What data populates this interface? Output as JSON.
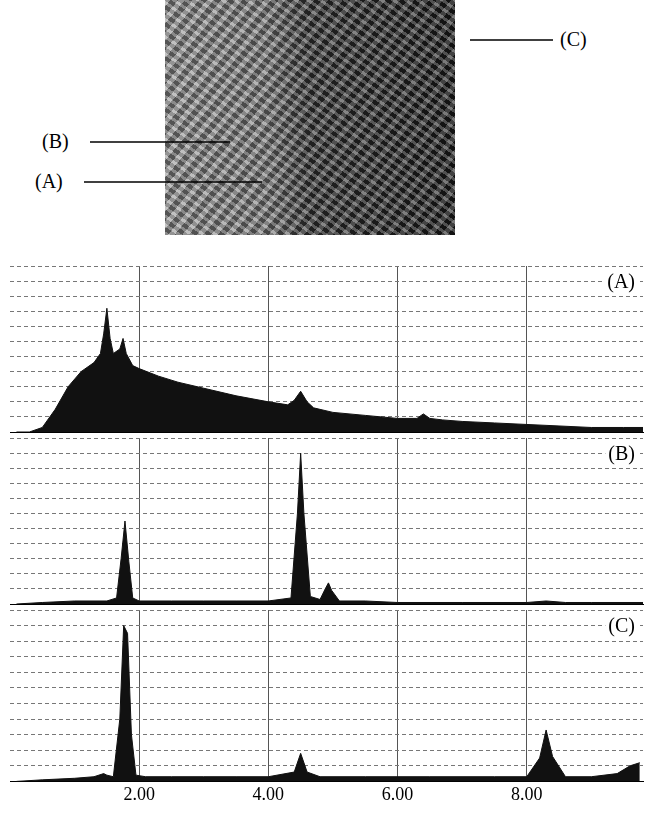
{
  "micrograph": {
    "labels": [
      "(B)",
      "(A)",
      "(C)"
    ]
  },
  "chart_data": [
    {
      "type": "area",
      "tick_labels": false,
      "grid": true,
      "xlim": [
        0,
        9.8
      ],
      "xticks": [
        {
          "value": 2,
          "label": "2.00"
        },
        {
          "value": 4,
          "label": "4.00"
        },
        {
          "value": 6,
          "label": "6.00"
        },
        {
          "value": 8,
          "label": "8.00"
        }
      ],
      "ylim": [
        0,
        110
      ],
      "yticks": [
        0,
        10,
        20,
        30,
        40,
        50,
        60,
        70,
        80,
        90,
        100,
        110
      ],
      "x": [
        0.1,
        0.3,
        0.5,
        0.7,
        0.9,
        1.1,
        1.3,
        1.4,
        1.45,
        1.5,
        1.55,
        1.6,
        1.7,
        1.75,
        1.8,
        1.9,
        2.0,
        2.3,
        2.6,
        3.0,
        3.5,
        4.0,
        4.3,
        4.4,
        4.5,
        4.6,
        4.7,
        5.0,
        5.5,
        6.0,
        6.3,
        6.4,
        6.5,
        6.7,
        7.0,
        7.5,
        8.0,
        8.5,
        9.0,
        9.5,
        9.8
      ],
      "series": [
        {
          "name": "(A)",
          "color": "#111111",
          "values": [
            0,
            0,
            3,
            15,
            30,
            40,
            46,
            52,
            65,
            82,
            62,
            52,
            55,
            62,
            52,
            44,
            42,
            37,
            33,
            29,
            24,
            20,
            18,
            21,
            27,
            20,
            16,
            13,
            11,
            9,
            9,
            12,
            9,
            8,
            7,
            6,
            5,
            4,
            3,
            3,
            3
          ]
        }
      ]
    },
    {
      "type": "area",
      "tick_labels": false,
      "grid": true,
      "xlim": [
        0,
        9.8
      ],
      "xticks": [
        {
          "value": 2,
          "label": "2.00"
        },
        {
          "value": 4,
          "label": "4.00"
        },
        {
          "value": 6,
          "label": "6.00"
        },
        {
          "value": 8,
          "label": "8.00"
        }
      ],
      "ylim": [
        0,
        110
      ],
      "yticks": [
        0,
        10,
        20,
        30,
        40,
        50,
        60,
        70,
        80,
        90,
        100,
        110
      ],
      "x": [
        0.1,
        0.5,
        1.0,
        1.5,
        1.65,
        1.72,
        1.78,
        1.84,
        1.9,
        2.0,
        2.5,
        3.0,
        3.5,
        4.0,
        4.35,
        4.45,
        4.5,
        4.55,
        4.65,
        4.8,
        4.88,
        4.93,
        4.98,
        5.1,
        5.5,
        6.0,
        7.0,
        8.0,
        8.3,
        8.6,
        9.0,
        9.8
      ],
      "series": [
        {
          "name": "(B)",
          "color": "#111111",
          "values": [
            0,
            1,
            2,
            2,
            4,
            30,
            55,
            28,
            4,
            2,
            2,
            2,
            2,
            2,
            4,
            60,
            100,
            60,
            5,
            3,
            10,
            14,
            9,
            2,
            2,
            1,
            1,
            1,
            2,
            1,
            1,
            1
          ]
        }
      ]
    },
    {
      "type": "area",
      "tick_labels": "x",
      "grid": true,
      "xlim": [
        0,
        9.8
      ],
      "xticks": [
        {
          "value": 2,
          "label": "2.00"
        },
        {
          "value": 4,
          "label": "4.00"
        },
        {
          "value": 6,
          "label": "6.00"
        },
        {
          "value": 8,
          "label": "8.00"
        }
      ],
      "ylim": [
        0,
        110
      ],
      "yticks": [
        0,
        10,
        20,
        30,
        40,
        50,
        60,
        70,
        80,
        90,
        100,
        110
      ],
      "x": [
        0.1,
        0.5,
        1.0,
        1.3,
        1.45,
        1.5,
        1.6,
        1.7,
        1.76,
        1.82,
        1.88,
        1.95,
        2.1,
        2.5,
        3.0,
        3.5,
        4.0,
        4.4,
        4.5,
        4.6,
        4.8,
        5.5,
        6.5,
        7.5,
        8.0,
        8.2,
        8.3,
        8.4,
        8.6,
        9.0,
        9.4,
        9.6,
        9.75
      ],
      "series": [
        {
          "name": "(C)",
          "color": "#111111",
          "values": [
            0,
            1,
            2,
            3,
            5,
            4,
            3,
            40,
            100,
            95,
            30,
            4,
            3,
            3,
            3,
            3,
            3,
            6,
            18,
            6,
            3,
            3,
            3,
            3,
            3,
            15,
            33,
            16,
            3,
            3,
            5,
            10,
            12
          ]
        }
      ]
    }
  ]
}
